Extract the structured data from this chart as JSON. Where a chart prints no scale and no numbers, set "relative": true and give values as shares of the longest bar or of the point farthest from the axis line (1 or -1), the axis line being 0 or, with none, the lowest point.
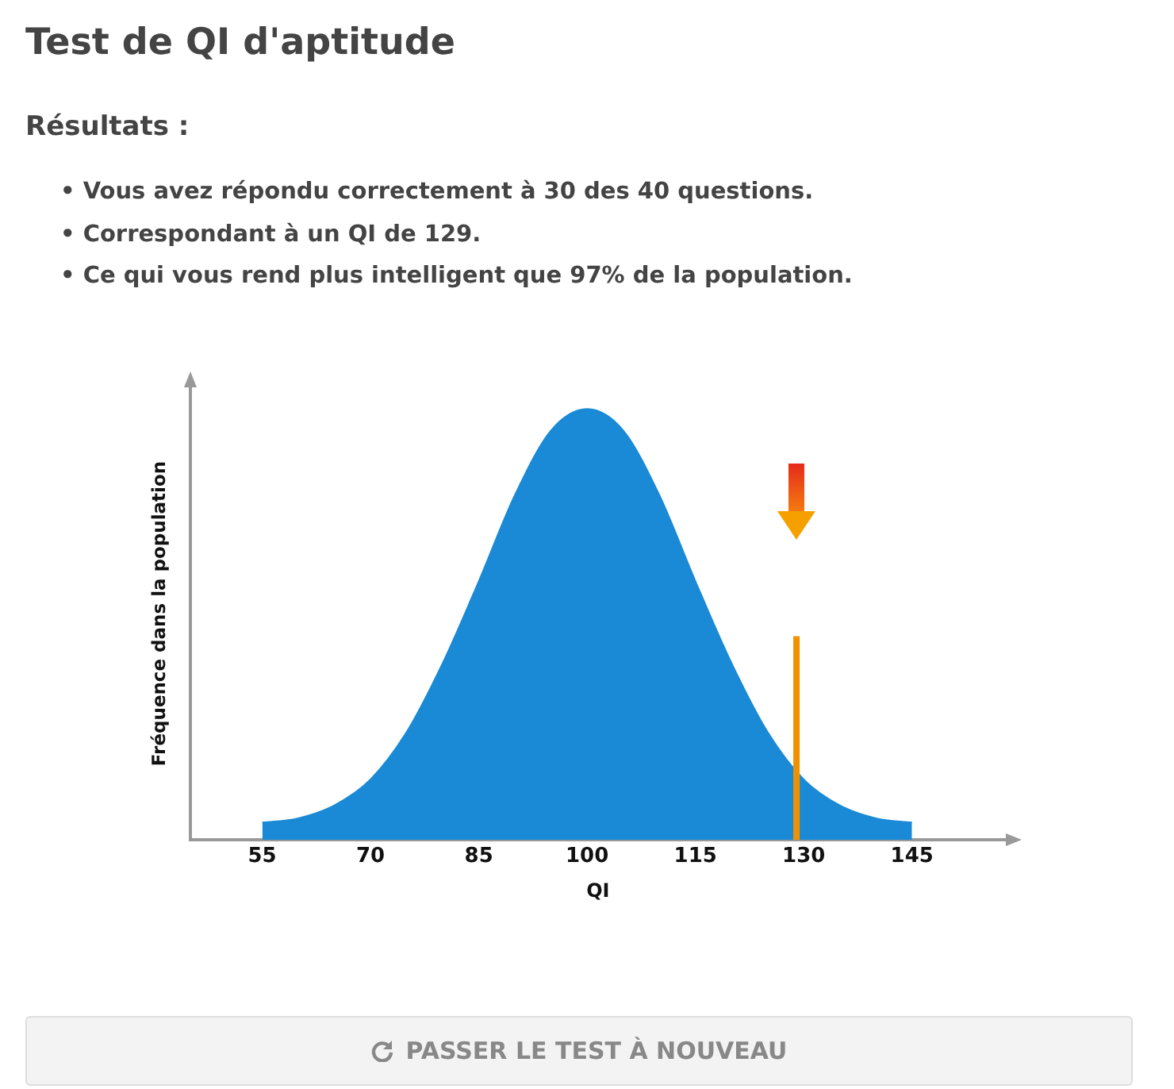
{
  "chart_data": {
    "type": "area",
    "title": "Test de QI d'aptitude",
    "subtitle": "Résultats :",
    "xlabel": "QI",
    "ylabel": "Fréquence dans la population",
    "annotations": [
      "• Vous avez répondu correctement à 30 des 40 questions.",
      "• Correspondant à un QI de 129.",
      "• Ce qui vous rend plus intelligent que 97% de la population.",
      "PASSER LE TEST À NOUVEAU"
    ],
    "relative": true,
    "x": [
      55,
      60,
      65,
      70,
      75,
      80,
      85,
      90,
      95,
      100,
      105,
      110,
      115,
      120,
      125,
      130,
      135,
      140,
      145
    ],
    "series": [
      {
        "color": "#1a8ad6",
        "values": [
          0.04,
          0.05,
          0.08,
          0.14,
          0.25,
          0.41,
          0.6,
          0.8,
          0.95,
          1,
          0.95,
          0.8,
          0.6,
          0.41,
          0.25,
          0.14,
          0.08,
          0.05,
          0.04
        ]
      }
    ],
    "xlim": [
      45,
      158
    ],
    "xticks": [
      55,
      70,
      85,
      100,
      115,
      130,
      145
    ],
    "ref_lines": [
      {
        "axis": "x",
        "value": 129,
        "color": "#f29100"
      }
    ],
    "grid": false,
    "legend": false
  }
}
